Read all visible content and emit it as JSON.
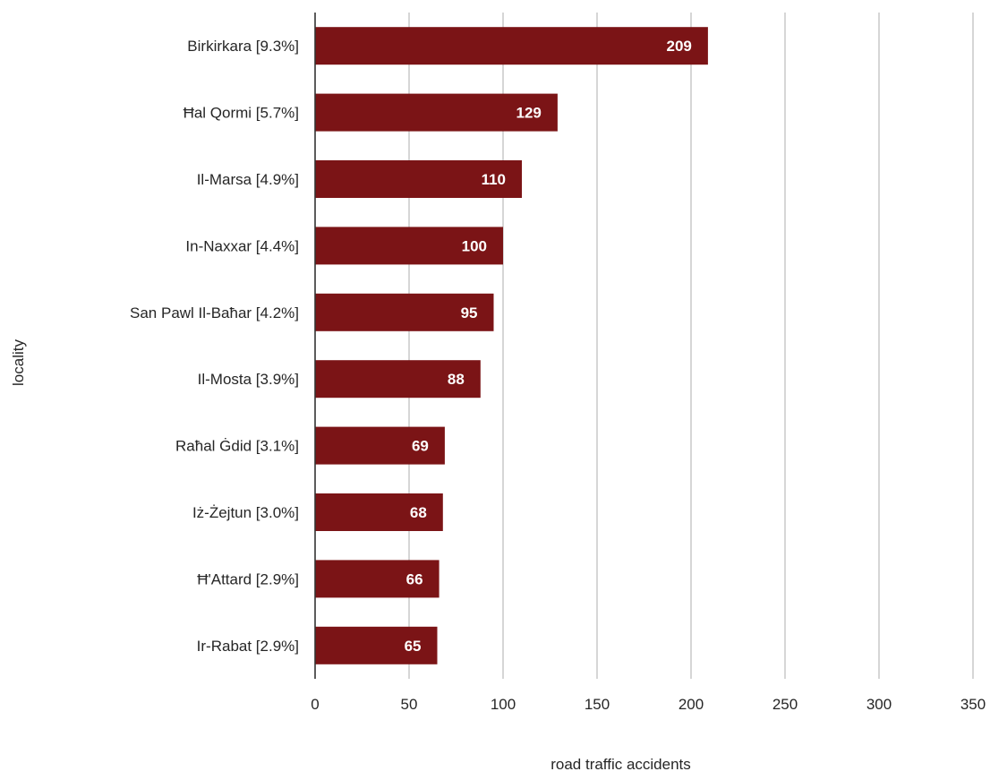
{
  "chart_data": {
    "type": "bar",
    "orientation": "horizontal",
    "categories": [
      "Birkirkara [9.3%]",
      "Ħal Qormi [5.7%]",
      "Il-Marsa [4.9%]",
      "In-Naxxar [4.4%]",
      "San Pawl Il-Baħar [4.2%]",
      "Il-Mosta [3.9%]",
      "Raħal Ġdid [3.1%]",
      "Iż-Żejtun [3.0%]",
      "Ħ'Attard [2.9%]",
      "Ir-Rabat [2.9%]"
    ],
    "values": [
      209,
      129,
      110,
      100,
      95,
      88,
      69,
      68,
      66,
      65
    ],
    "bar_color": "#7b1416",
    "title": "",
    "xlabel": "road traffic accidents",
    "ylabel": "locality",
    "xlim": [
      0,
      350
    ],
    "xticks": [
      0,
      50,
      100,
      150,
      200,
      250,
      300,
      350
    ],
    "grid": "vertical",
    "data_labels": true
  }
}
